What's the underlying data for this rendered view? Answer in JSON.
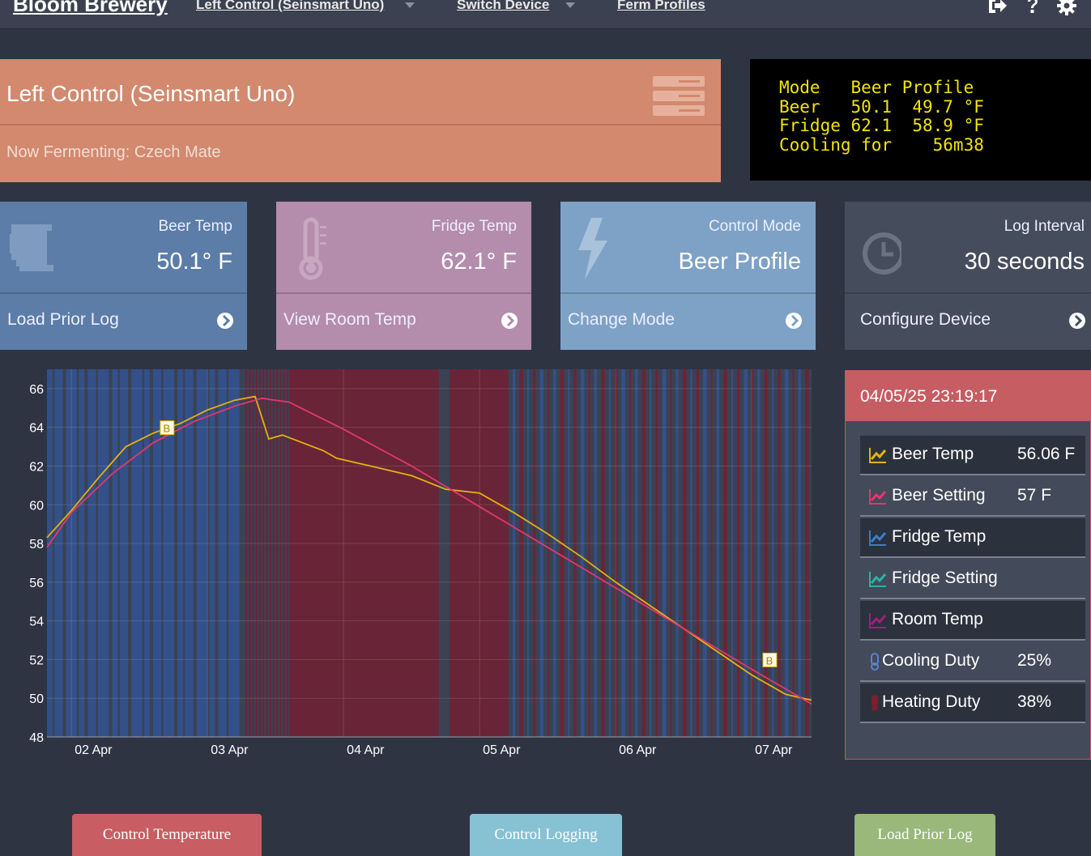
{
  "nav": {
    "brand": "Bloom Brewery",
    "links": [
      "Left Control (Seinsmart Uno)",
      "Switch Device",
      "Ferm Profiles"
    ],
    "icons": [
      "logout-icon",
      "help-icon",
      "gear-icon"
    ]
  },
  "device": {
    "title": "Left Control (Seinsmart Uno)",
    "subtitle": "Now Fermenting: Czech Mate"
  },
  "lcd": {
    "lines": [
      "Mode   Beer Profile",
      "Beer   50.1  49.7 °F",
      "Fridge 62.1  58.9 °F",
      "Cooling for    56m38"
    ]
  },
  "cards": [
    {
      "label": "Beer Temp",
      "value": "50.1° F",
      "action": "Load Prior Log",
      "color": "#5b7da7",
      "icon": "mug-icon"
    },
    {
      "label": "Fridge Temp",
      "value": "62.1° F",
      "action": "View Room Temp",
      "color": "#b48cac",
      "icon": "thermometer-icon"
    },
    {
      "label": "Control Mode",
      "value": "Beer Profile",
      "action": "Change Mode",
      "color": "#7ea2c6",
      "icon": "bolt-icon"
    },
    {
      "label": "Log Interval",
      "value": "30 seconds",
      "action": "Configure Device",
      "color": "#454c5c",
      "icon": "clock-icon"
    }
  ],
  "chart_data": {
    "type": "line",
    "ylim": [
      48,
      67
    ],
    "yticks": [
      48,
      50,
      52,
      54,
      56,
      58,
      60,
      62,
      64,
      66
    ],
    "xticks": [
      "02 Apr",
      "03 Apr",
      "04 Apr",
      "05 Apr",
      "06 Apr",
      "07 Apr"
    ],
    "x_range_days": [
      1.82,
      7.44
    ],
    "series": [
      {
        "name": "Beer Temp",
        "color": "#e5b20d",
        "x": [
          1.82,
          2.0,
          2.2,
          2.4,
          2.6,
          2.8,
          3.0,
          3.2,
          3.35,
          3.45,
          3.55,
          3.7,
          3.85,
          3.95,
          4.2,
          4.5,
          4.75,
          5.0,
          5.25,
          5.5,
          5.75,
          6.0,
          6.25,
          6.5,
          6.75,
          7.0,
          7.25,
          7.44
        ],
        "y": [
          58.3,
          59.7,
          61.4,
          63.0,
          63.7,
          64.2,
          64.9,
          65.4,
          65.6,
          63.4,
          63.6,
          63.2,
          62.8,
          62.4,
          62.0,
          61.5,
          60.8,
          60.6,
          59.6,
          58.5,
          57.3,
          56.0,
          54.8,
          53.6,
          52.4,
          51.2,
          50.2,
          49.9
        ]
      },
      {
        "name": "Beer Setting",
        "color": "#e0386e",
        "x": [
          1.82,
          2.0,
          2.3,
          2.6,
          2.9,
          3.2,
          3.4,
          3.6,
          4.0,
          4.5,
          5.0,
          5.5,
          6.0,
          6.5,
          7.0,
          7.44
        ],
        "y": [
          57.8,
          59.6,
          61.6,
          63.2,
          64.3,
          65.1,
          65.5,
          65.3,
          63.9,
          62.0,
          59.9,
          57.8,
          55.7,
          53.6,
          51.5,
          49.7
        ]
      }
    ],
    "annotations": [
      {
        "label": "B",
        "x": 2.7,
        "y": 64.0
      },
      {
        "label": "B",
        "x": 7.13,
        "y": 52.0
      }
    ]
  },
  "legend": {
    "time": "04/05/25 23:19:17",
    "rows": [
      {
        "name": "Beer Temp",
        "value": "56.06 F",
        "color": "#e5b20d",
        "kind": "line"
      },
      {
        "name": "Beer Setting",
        "value": "57 F",
        "color": "#e0386e",
        "kind": "line"
      },
      {
        "name": "Fridge Temp",
        "value": "",
        "color": "#3a7fc8",
        "kind": "line"
      },
      {
        "name": "Fridge Setting",
        "value": "",
        "color": "#2bb3a3",
        "kind": "line"
      },
      {
        "name": "Room Temp",
        "value": "",
        "color": "#a0207a",
        "kind": "line"
      },
      {
        "name": "Cooling Duty",
        "value": "25%",
        "color": "#5d82c8",
        "kind": "bar"
      },
      {
        "name": "Heating Duty",
        "value": "38%",
        "color": "#7a1f30",
        "kind": "bar"
      }
    ]
  },
  "buttons": [
    {
      "label": "Control Temperature",
      "color": "#c85d63"
    },
    {
      "label": "Control Logging",
      "color": "#86c1d4"
    },
    {
      "label": "Load Prior Log",
      "color": "#99b87a"
    }
  ]
}
